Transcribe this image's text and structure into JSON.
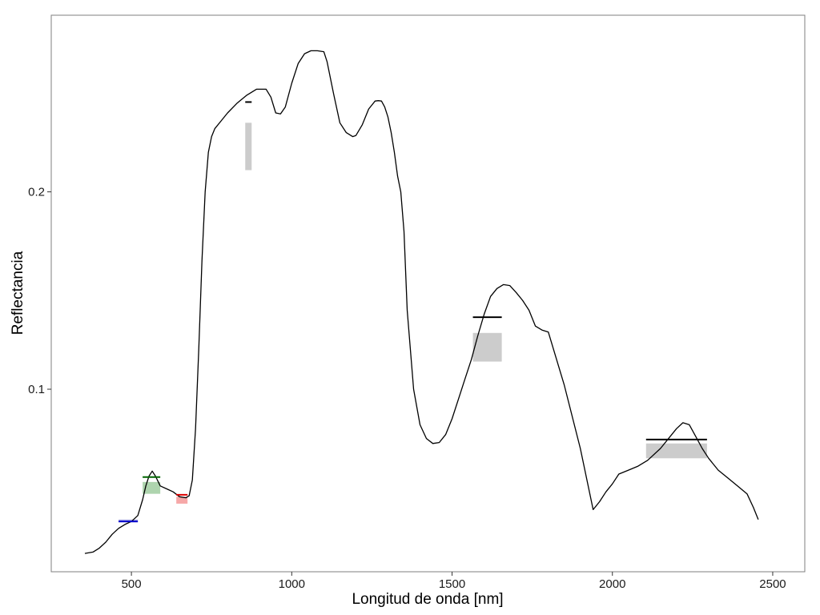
{
  "chart_data": {
    "type": "line",
    "xlabel": "Longitud de onda [nm]",
    "ylabel": "Reflectancia",
    "xlim": [
      250,
      2600
    ],
    "ylim": [
      0.0075,
      0.2895
    ],
    "xticks": [
      500,
      1000,
      1500,
      2000,
      2500
    ],
    "xtick_labels": [
      "500",
      "1000",
      "1500",
      "2000",
      "2500"
    ],
    "yticks": [
      0.1,
      0.2
    ],
    "ytick_labels": [
      "0.1",
      "0.2"
    ],
    "grid": false,
    "series": [
      {
        "color": "#000000",
        "x": [
          355,
          380,
          400,
          420,
          440,
          460,
          480,
          500,
          520,
          535,
          545,
          555,
          565,
          575,
          590,
          610,
          630,
          650,
          670,
          680,
          690,
          700,
          710,
          720,
          730,
          740,
          750,
          760,
          780,
          800,
          830,
          860,
          890,
          920,
          935,
          950,
          965,
          980,
          1000,
          1020,
          1040,
          1060,
          1080,
          1100,
          1110,
          1130,
          1150,
          1170,
          1190,
          1200,
          1220,
          1240,
          1260,
          1270,
          1280,
          1290,
          1300,
          1310,
          1320,
          1330,
          1340,
          1350,
          1360,
          1380,
          1400,
          1420,
          1440,
          1460,
          1480,
          1500,
          1520,
          1540,
          1560,
          1580,
          1600,
          1620,
          1640,
          1660,
          1680,
          1700,
          1720,
          1740,
          1760,
          1780,
          1800,
          1850,
          1900,
          1940,
          1960,
          1980,
          2000,
          2020,
          2050,
          2080,
          2110,
          2150,
          2180,
          2200,
          2220,
          2240,
          2260,
          2280,
          2300,
          2330,
          2360,
          2390,
          2420,
          2440,
          2455
        ],
        "y": [
          0.0168,
          0.0175,
          0.0195,
          0.0225,
          0.0265,
          0.0295,
          0.0315,
          0.033,
          0.036,
          0.044,
          0.051,
          0.056,
          0.0585,
          0.056,
          0.051,
          0.0495,
          0.048,
          0.0455,
          0.045,
          0.046,
          0.054,
          0.08,
          0.12,
          0.165,
          0.2,
          0.22,
          0.228,
          0.232,
          0.236,
          0.24,
          0.245,
          0.249,
          0.252,
          0.252,
          0.248,
          0.24,
          0.2395,
          0.243,
          0.255,
          0.265,
          0.27,
          0.2715,
          0.2715,
          0.271,
          0.266,
          0.25,
          0.235,
          0.23,
          0.228,
          0.2285,
          0.234,
          0.242,
          0.246,
          0.2462,
          0.246,
          0.243,
          0.238,
          0.23,
          0.22,
          0.208,
          0.2,
          0.18,
          0.14,
          0.1,
          0.082,
          0.075,
          0.0725,
          0.073,
          0.077,
          0.085,
          0.095,
          0.105,
          0.115,
          0.127,
          0.138,
          0.147,
          0.151,
          0.153,
          0.1525,
          0.149,
          0.145,
          0.14,
          0.132,
          0.13,
          0.129,
          0.102,
          0.07,
          0.039,
          0.043,
          0.048,
          0.052,
          0.057,
          0.059,
          0.061,
          0.064,
          0.07,
          0.076,
          0.08,
          0.083,
          0.082,
          0.076,
          0.07,
          0.065,
          0.059,
          0.055,
          0.051,
          0.047,
          0.04,
          0.034
        ]
      }
    ],
    "annotations": [
      {
        "x_start": 460,
        "x_end": 520,
        "y": 0.033,
        "band_low": 0.0325,
        "band_high": 0.034,
        "line_color": "#0000cc",
        "band_color": "#b3b3e6"
      },
      {
        "x_start": 535,
        "x_end": 590,
        "y": 0.0555,
        "band_low": 0.047,
        "band_high": 0.053,
        "line_color": "#006400",
        "band_color": "#aed4ae"
      },
      {
        "x_start": 640,
        "x_end": 675,
        "y": 0.0465,
        "band_low": 0.042,
        "band_high": 0.0455,
        "line_color": "#dd0000",
        "band_color": "#f6a8a8"
      },
      {
        "x_start": 855,
        "x_end": 875,
        "y": 0.2455,
        "band_low": 0.211,
        "band_high": 0.235,
        "line_color": "#000000",
        "band_color": "#cccccc"
      },
      {
        "x_start": 1565,
        "x_end": 1655,
        "y": 0.1365,
        "band_low": 0.114,
        "band_high": 0.1285,
        "line_color": "#000000",
        "band_color": "#cccccc"
      },
      {
        "x_start": 2105,
        "x_end": 2295,
        "y": 0.0745,
        "band_low": 0.065,
        "band_high": 0.0725,
        "line_color": "#000000",
        "band_color": "#cccccc"
      }
    ]
  }
}
